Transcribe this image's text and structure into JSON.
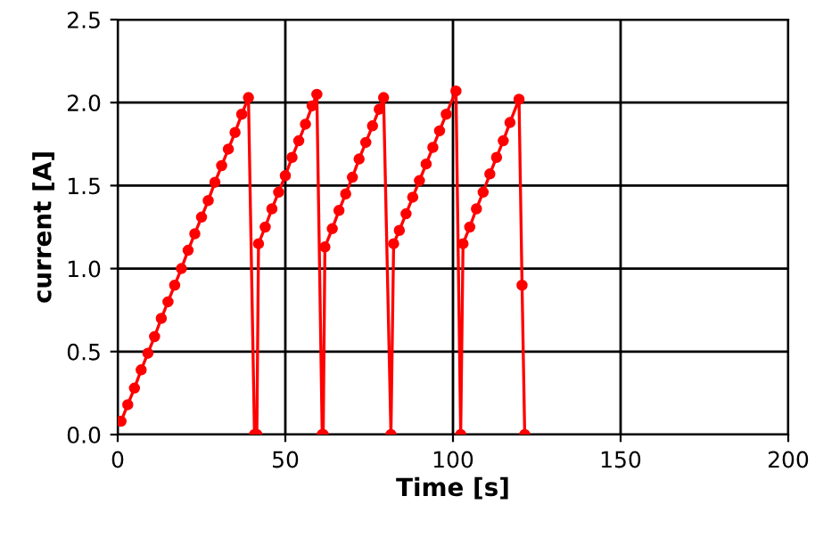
{
  "chart_data": {
    "type": "line",
    "xlabel": "Time [s]",
    "ylabel": "current [A]",
    "series": [
      {
        "color": "#ff0000",
        "x": [
          1,
          3,
          5,
          7,
          9,
          11,
          13,
          15,
          17,
          19,
          21,
          23,
          25,
          27,
          29,
          31,
          33,
          35,
          37,
          39,
          40.8,
          41.5,
          42,
          44,
          46,
          48,
          50,
          52,
          54,
          56,
          58,
          59.4,
          61,
          61.3,
          61.8,
          64,
          66,
          68,
          70,
          72,
          74,
          76,
          78,
          79.3,
          81.5,
          82.3,
          84,
          86,
          88,
          90,
          92,
          94,
          96,
          98,
          100.9,
          102.3,
          103,
          105,
          107,
          109,
          111,
          113,
          115,
          117,
          119.7,
          120.6,
          121.4
        ],
        "values": [
          0.08,
          0.18,
          0.28,
          0.39,
          0.49,
          0.59,
          0.7,
          0.8,
          0.9,
          1.0,
          1.11,
          1.21,
          1.31,
          1.41,
          1.52,
          1.62,
          1.72,
          1.82,
          1.93,
          2.03,
          0,
          0,
          1.15,
          1.25,
          1.36,
          1.46,
          1.56,
          1.67,
          1.77,
          1.87,
          1.98,
          2.05,
          0,
          0,
          1.13,
          1.24,
          1.35,
          1.45,
          1.55,
          1.66,
          1.76,
          1.86,
          1.96,
          2.03,
          0,
          1.15,
          1.23,
          1.33,
          1.43,
          1.53,
          1.63,
          1.73,
          1.83,
          1.93,
          2.07,
          0,
          1.15,
          1.25,
          1.36,
          1.46,
          1.57,
          1.67,
          1.77,
          1.88,
          2.02,
          0.9,
          0
        ]
      }
    ],
    "xlim": [
      0,
      200
    ],
    "xticks": [
      0,
      50,
      100,
      150,
      200
    ],
    "ylim": [
      0,
      2.5
    ],
    "yticks": [
      {
        "value": 0,
        "label": "0.0"
      },
      {
        "value": 0.5,
        "label": "0.5"
      },
      {
        "value": 1,
        "label": "1.0"
      },
      {
        "value": 1.5,
        "label": "1.5"
      },
      {
        "value": 2,
        "label": "2.0"
      },
      {
        "value": 2.5,
        "label": "2.5"
      }
    ],
    "grid": true,
    "marker": "circle",
    "line_style": "solid"
  }
}
